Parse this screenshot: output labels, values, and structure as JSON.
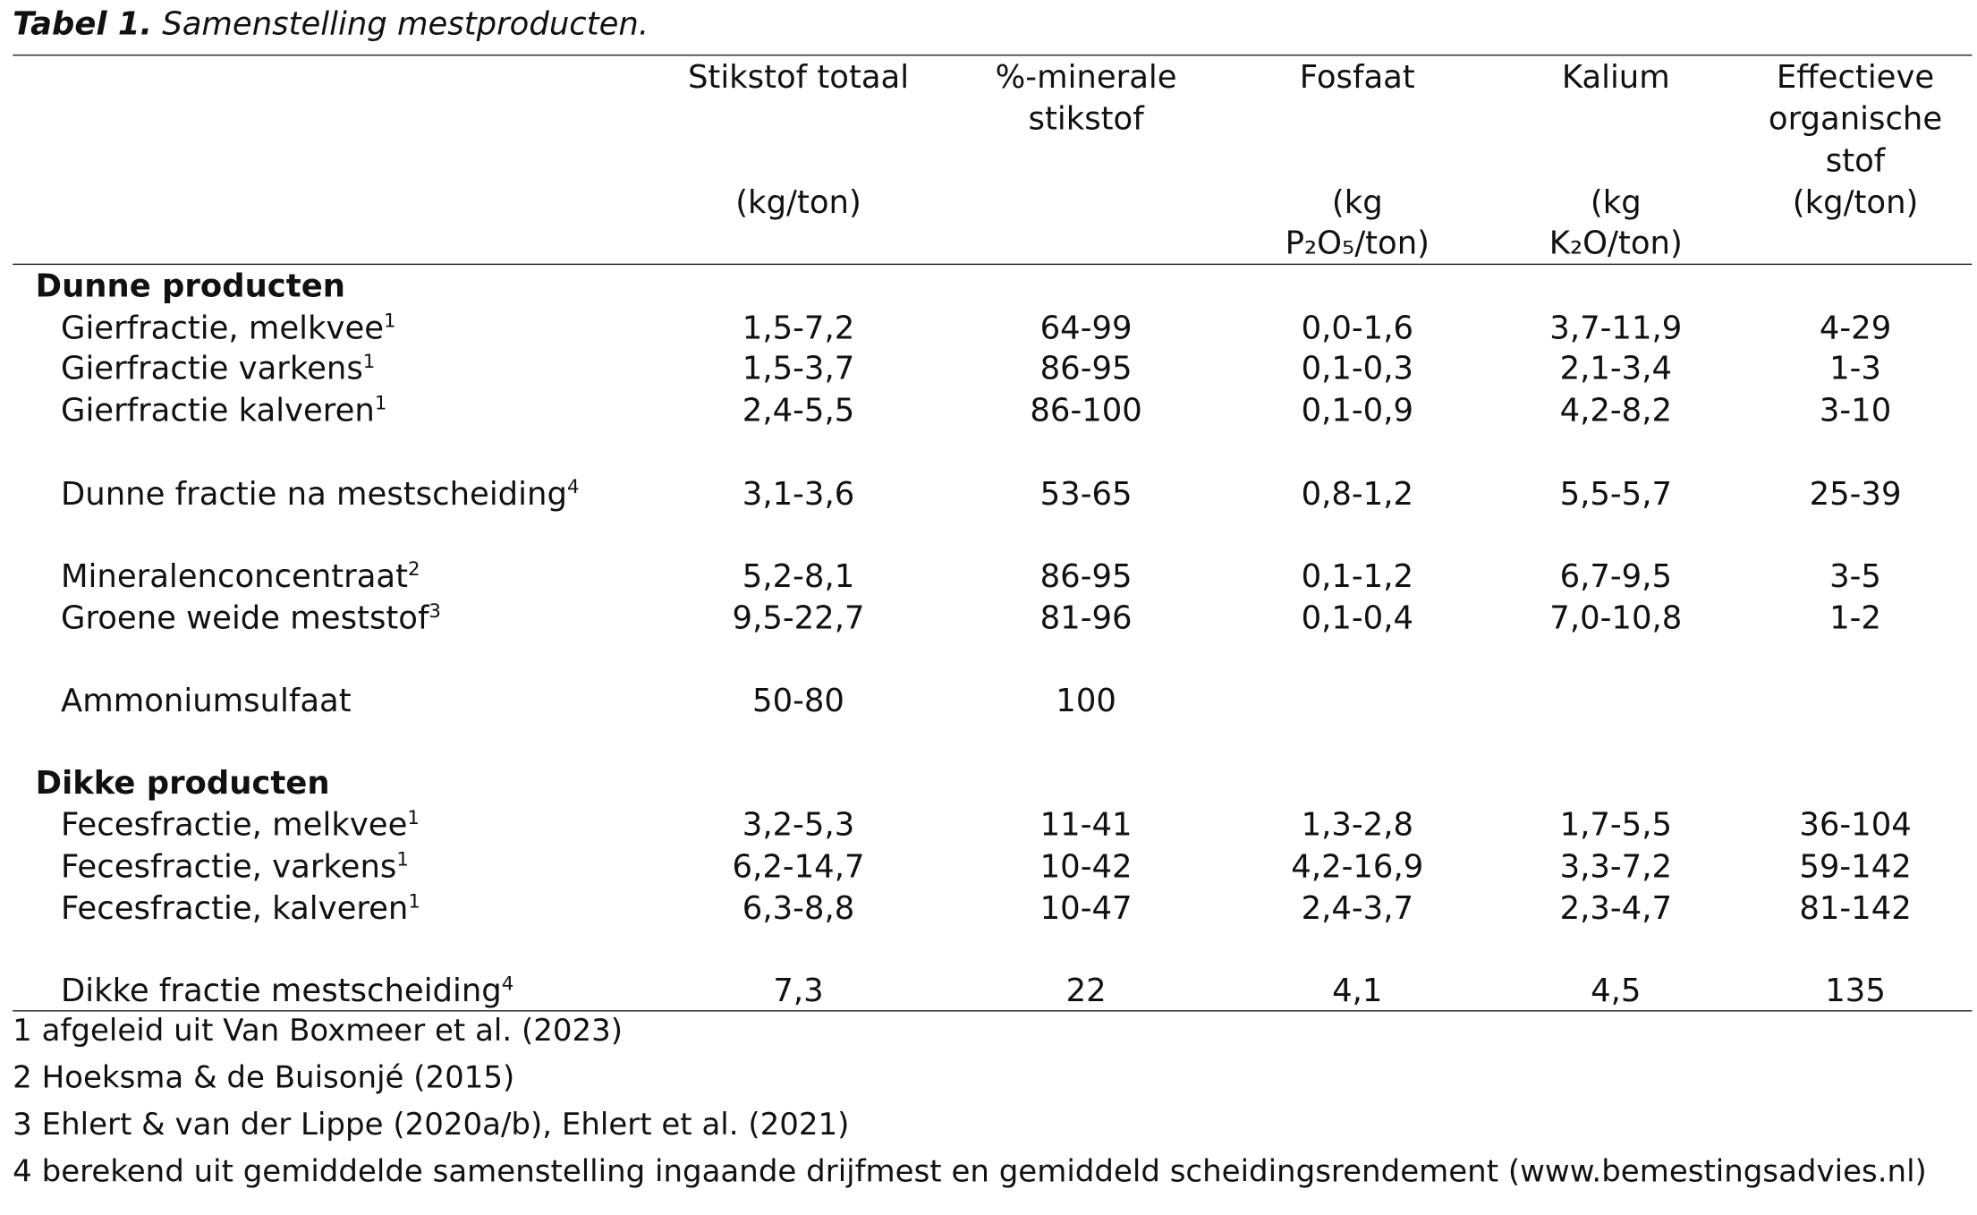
{
  "title": {
    "label": "Tabel 1.",
    "text": "Samenstelling mestproducten."
  },
  "table": {
    "columns": [
      {
        "name": [
          "Stikstof totaal"
        ],
        "unit": [
          "(kg/ton)"
        ]
      },
      {
        "name": [
          "%-minerale",
          "stikstof"
        ]
      },
      {
        "name": [
          "Fosfaat"
        ],
        "unit": [
          "(kg",
          "P₂O₅/ton)"
        ]
      },
      {
        "name": [
          "Kalium"
        ],
        "unit": [
          "(kg",
          "K₂O/ton)"
        ]
      },
      {
        "name": [
          "Effectieve",
          "organische",
          "stof"
        ],
        "unit": [
          "(kg/ton)"
        ]
      }
    ],
    "rows": [
      {
        "section": "Dunne producten"
      },
      {
        "label": "Gierfractie, melkvee",
        "sup": "1",
        "values": [
          "1,5-7,2",
          "64-99",
          "0,0-1,6",
          "3,7-11,9",
          "4-29"
        ]
      },
      {
        "label": "Gierfractie varkens",
        "sup": "1",
        "values": [
          "1,5-3,7",
          "86-95",
          "0,1-0,3",
          "2,1-3,4",
          "1-3"
        ]
      },
      {
        "label": "Gierfractie kalveren",
        "sup": "1",
        "values": [
          "2,4-5,5",
          "86-100",
          "0,1-0,9",
          "4,2-8,2",
          "3-10"
        ]
      },
      {
        "label": "Dunne fractie na mestscheiding",
        "sup": "4",
        "values": [
          "3,1-3,6",
          "53-65",
          "0,8-1,2",
          "5,5-5,7",
          "25-39"
        ]
      },
      {
        "label": "Mineralenconcentraat",
        "sup": "2",
        "values": [
          "5,2-8,1",
          "86-95",
          "0,1-1,2",
          "6,7-9,5",
          "3-5"
        ]
      },
      {
        "label": "Groene weide meststof",
        "sup": "3",
        "values": [
          "9,5-22,7",
          "81-96",
          "0,1-0,4",
          "7,0-10,8",
          "1-2"
        ]
      },
      {
        "label": "Ammoniumsulfaat",
        "values": [
          "50-80",
          "100"
        ]
      },
      {
        "section": "Dikke producten"
      },
      {
        "label": "Fecesfractie, melkvee",
        "sup": "1",
        "values": [
          "3,2-5,3",
          "11-41",
          "1,3-2,8",
          "1,7-5,5",
          "36-104"
        ]
      },
      {
        "label": "Fecesfractie, varkens",
        "sup": "1",
        "values": [
          "6,2-14,7",
          "10-42",
          "4,2-16,9",
          "3,3-7,2",
          "59-142"
        ]
      },
      {
        "label": "Fecesfractie, kalveren",
        "sup": "1",
        "values": [
          "6,3-8,8",
          "10-47",
          "2,4-3,7",
          "2,3-4,7",
          "81-142"
        ]
      },
      {
        "label": "Dikke fractie mestscheiding",
        "sup": "4",
        "values": [
          "7,3",
          "22",
          "4,1",
          "4,5",
          "135"
        ]
      }
    ]
  },
  "footnotes": [
    "1 afgeleid uit Van Boxmeer et al. (2023)",
    "2 Hoeksma & de Buisonjé (2015)",
    "3 Ehlert & van der Lippe (2020a/b), Ehlert et al. (2021)",
    "4 berekend uit gemiddelde samenstelling ingaande drijfmest en gemiddeld scheidingsrendement (www.bemestingsadvies.nl)"
  ]
}
